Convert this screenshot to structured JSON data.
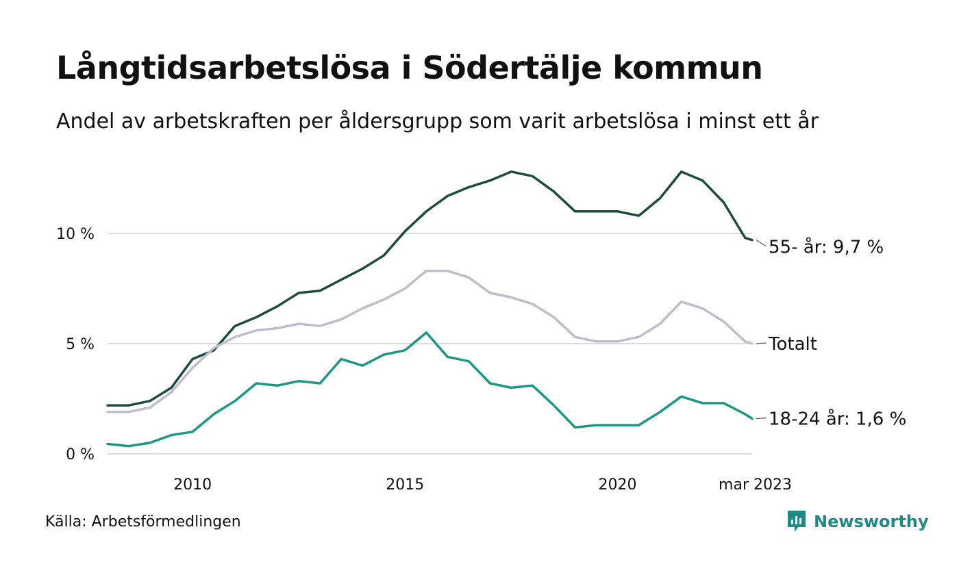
{
  "title": "Långtidsarbetslösa i Södertälje kommun",
  "subtitle": "Andel av arbetskraften per åldersgrupp som varit arbetslösa i minst ett år",
  "source": "Källa: Arbetsförmedlingen",
  "brand": "Newsworthy",
  "colors": {
    "text": "#111111",
    "grid": "#dcdcdc",
    "brand": "#1f8a83"
  },
  "chart_data": {
    "type": "line",
    "title": "Långtidsarbetslösa i Södertälje kommun",
    "subtitle": "Andel av arbetskraften per åldersgrupp som varit arbetslösa i minst ett år",
    "xlabel": "",
    "ylabel": "",
    "x_ticks": [
      {
        "label": "2010",
        "value": "2010-01"
      },
      {
        "label": "2015",
        "value": "2015-01"
      },
      {
        "label": "2020",
        "value": "2020-01"
      },
      {
        "label": "mar 2023",
        "value": "2023-03"
      }
    ],
    "y_ticks": [
      {
        "label": "0 %",
        "value": 0
      },
      {
        "label": "5 %",
        "value": 5
      },
      {
        "label": "10 %",
        "value": 10
      }
    ],
    "ylim": [
      0,
      13
    ],
    "xlim": [
      "2008-01",
      "2023-03"
    ],
    "grid": true,
    "legend": "end-of-line labels",
    "series": [
      {
        "name": "55- år",
        "end_label": "55- år: 9,7 %",
        "color": "#1e4a40",
        "x": [
          "2008-01",
          "2008-07",
          "2009-01",
          "2009-07",
          "2010-01",
          "2010-07",
          "2011-01",
          "2011-07",
          "2012-01",
          "2012-07",
          "2013-01",
          "2013-07",
          "2014-01",
          "2014-07",
          "2015-01",
          "2015-07",
          "2016-01",
          "2016-07",
          "2017-01",
          "2017-07",
          "2018-01",
          "2018-07",
          "2019-01",
          "2019-07",
          "2020-01",
          "2020-07",
          "2021-01",
          "2021-07",
          "2022-01",
          "2022-07",
          "2023-01",
          "2023-03"
        ],
        "values": [
          2.2,
          2.2,
          2.4,
          3.0,
          4.3,
          4.7,
          5.8,
          6.2,
          6.7,
          7.3,
          7.4,
          7.9,
          8.4,
          9.0,
          10.1,
          11.0,
          11.7,
          12.1,
          12.4,
          12.8,
          12.6,
          11.9,
          11.0,
          11.0,
          11.0,
          10.8,
          11.6,
          12.8,
          12.4,
          11.4,
          9.8,
          9.7
        ]
      },
      {
        "name": "Totalt",
        "end_label": "Totalt",
        "color": "#bdbdcc",
        "x": [
          "2008-01",
          "2008-07",
          "2009-01",
          "2009-07",
          "2010-01",
          "2010-07",
          "2011-01",
          "2011-07",
          "2012-01",
          "2012-07",
          "2013-01",
          "2013-07",
          "2014-01",
          "2014-07",
          "2015-01",
          "2015-07",
          "2016-01",
          "2016-07",
          "2017-01",
          "2017-07",
          "2018-01",
          "2018-07",
          "2019-01",
          "2019-07",
          "2020-01",
          "2020-07",
          "2021-01",
          "2021-07",
          "2022-01",
          "2022-07",
          "2023-01",
          "2023-03"
        ],
        "values": [
          1.9,
          1.9,
          2.1,
          2.8,
          3.9,
          4.8,
          5.3,
          5.6,
          5.7,
          5.9,
          5.8,
          6.1,
          6.6,
          7.0,
          7.5,
          8.3,
          8.3,
          8.0,
          7.3,
          7.1,
          6.8,
          6.2,
          5.3,
          5.1,
          5.1,
          5.3,
          5.9,
          6.9,
          6.6,
          6.0,
          5.1,
          5.0
        ]
      },
      {
        "name": "18-24 år",
        "end_label": "18-24 år: 1,6 %",
        "color": "#1b9784",
        "x": [
          "2008-01",
          "2008-07",
          "2009-01",
          "2009-07",
          "2010-01",
          "2010-07",
          "2011-01",
          "2011-07",
          "2012-01",
          "2012-07",
          "2013-01",
          "2013-07",
          "2014-01",
          "2014-07",
          "2015-01",
          "2015-07",
          "2016-01",
          "2016-07",
          "2017-01",
          "2017-07",
          "2018-01",
          "2018-07",
          "2019-01",
          "2019-07",
          "2020-01",
          "2020-07",
          "2021-01",
          "2021-07",
          "2022-01",
          "2022-07",
          "2023-01",
          "2023-03"
        ],
        "values": [
          0.45,
          0.35,
          0.5,
          0.85,
          1.0,
          1.8,
          2.4,
          3.2,
          3.1,
          3.3,
          3.2,
          4.3,
          4.0,
          4.5,
          4.7,
          5.5,
          4.4,
          4.2,
          3.2,
          3.0,
          3.1,
          2.2,
          1.2,
          1.3,
          1.3,
          1.3,
          1.9,
          2.6,
          2.3,
          2.3,
          1.8,
          1.6
        ]
      }
    ]
  }
}
